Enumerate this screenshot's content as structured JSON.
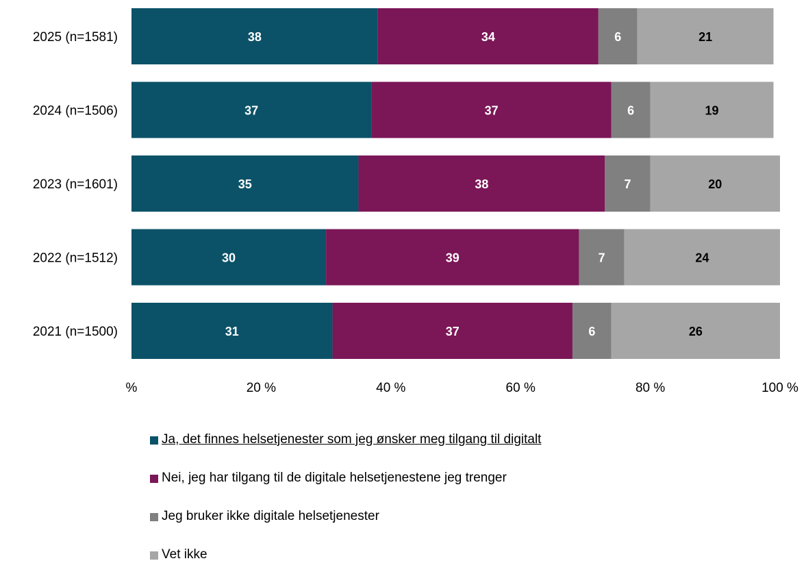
{
  "chart_data": {
    "type": "bar",
    "orientation": "horizontal",
    "stacked": true,
    "categories": [
      "2025 (n=1581)",
      "2024 (n=1506)",
      "2023 (n=1601)",
      "2022 (n=1512)",
      "2021 (n=1500)"
    ],
    "series": [
      {
        "name": "Ja, det finnes helsetjenester som jeg ønsker meg tilgang til digitalt",
        "color": "#0b5268",
        "label_color": "#ffffff",
        "values": [
          38,
          37,
          35,
          30,
          31
        ]
      },
      {
        "name": "Nei, jeg har tilgang til de digitale helsetjenestene jeg trenger",
        "color": "#7b1657",
        "label_color": "#ffffff",
        "values": [
          34,
          37,
          38,
          39,
          37
        ]
      },
      {
        "name": "Jeg bruker ikke digitale helsetjenester",
        "color": "#808080",
        "label_color": "#ffffff",
        "values": [
          6,
          6,
          7,
          7,
          6
        ]
      },
      {
        "name": "Vet ikke",
        "color": "#a6a6a6",
        "label_color": "#000000",
        "values": [
          21,
          19,
          20,
          24,
          26
        ]
      }
    ],
    "xlim": [
      0,
      100
    ],
    "xticks": [
      0,
      20,
      40,
      60,
      80,
      100
    ],
    "xtick_labels": [
      "%",
      "20 %",
      "40 %",
      "60 %",
      "80 %",
      "100 %"
    ],
    "grid": false,
    "legend_position": "bottom"
  }
}
